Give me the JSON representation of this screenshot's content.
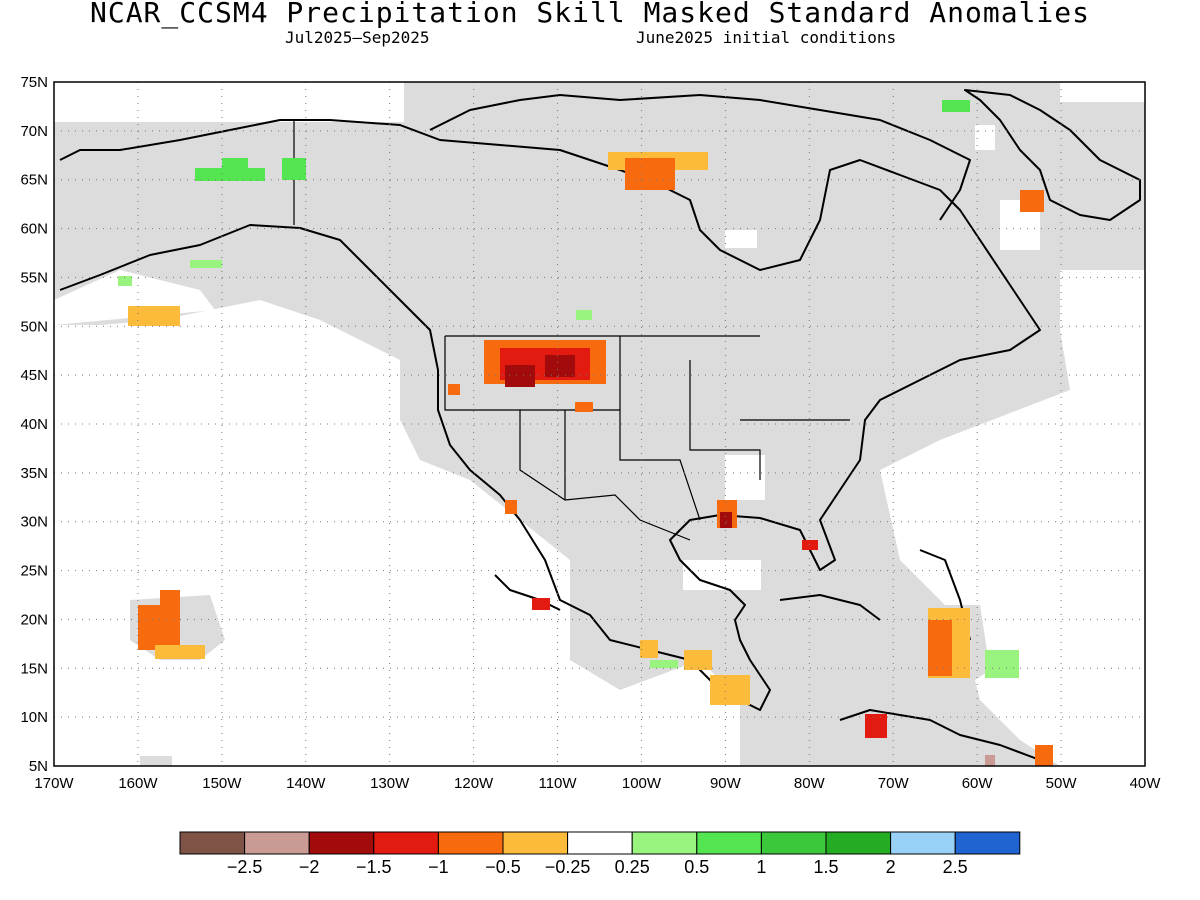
{
  "title": "NCAR_CCSM4 Precipitation Skill Masked Standard Anomalies",
  "subtitle_left": "Jul2025–Sep2025",
  "subtitle_right": "June2025 initial conditions",
  "map": {
    "lon_min": -170,
    "lon_max": -40,
    "lat_min": 5,
    "lat_max": 75,
    "lat_ticks": [
      "5N",
      "10N",
      "15N",
      "20N",
      "25N",
      "30N",
      "35N",
      "40N",
      "45N",
      "50N",
      "55N",
      "60N",
      "65N",
      "70N",
      "75N"
    ],
    "lon_ticks": [
      "170W",
      "160W",
      "150W",
      "140W",
      "130W",
      "120W",
      "110W",
      "100W",
      "90W",
      "80W",
      "70W",
      "60W",
      "50W",
      "40W"
    ],
    "grid": true,
    "masked_color": "#dcdcdc",
    "land_outline": "#000000"
  },
  "colorbar": {
    "colors": [
      "#7f5447",
      "#c99b94",
      "#a20b0b",
      "#e21a10",
      "#f86a0e",
      "#fdbb3c",
      "#ffffff",
      "#98f37f",
      "#53e651",
      "#3bc93b",
      "#24ad24",
      "#9ad2f7",
      "#1f64d0"
    ],
    "tick_labels": [
      "−2.5",
      "−2",
      "−1.5",
      "−1",
      "−0.5",
      "−0.25",
      "0.25",
      "0.5",
      "1",
      "1.5",
      "2",
      "2.5"
    ]
  }
}
